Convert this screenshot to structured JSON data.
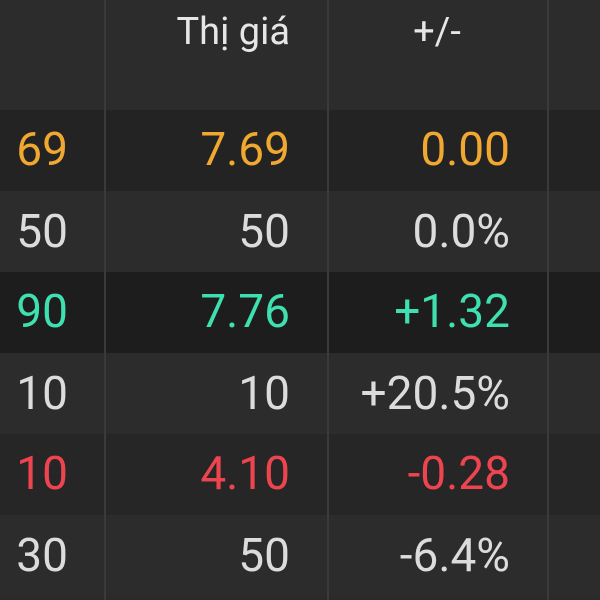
{
  "header": {
    "columns": [
      "Thị giá",
      "+/-"
    ]
  },
  "rows": [
    {
      "left_top": "69",
      "left_bottom": "50",
      "price": "7.69",
      "volume": "50",
      "change": "0.00",
      "percent": "0.0%"
    },
    {
      "left_top": "90",
      "left_bottom": "10",
      "price": "7.76",
      "volume": "10",
      "change": "+1.32",
      "percent": "+20.5%"
    },
    {
      "left_top": "10",
      "left_bottom": "30",
      "price": "4.10",
      "volume": "50",
      "change": "-0.28",
      "percent": "-6.4%"
    }
  ]
}
